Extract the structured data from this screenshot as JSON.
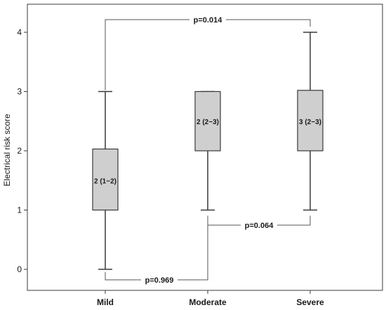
{
  "chart_data": {
    "type": "box",
    "ylabel": "Electrical risk score",
    "ylim": [
      -0.3,
      4.35
    ],
    "yticks": [
      0,
      1,
      2,
      3,
      4
    ],
    "categories": [
      "Mild",
      "Moderate",
      "Severe"
    ],
    "boxes": [
      {
        "category": "Mild",
        "min": 0,
        "q1": 1,
        "median": 1.5,
        "q3": 2.03,
        "max": 3,
        "label": "2 (1−2)"
      },
      {
        "category": "Moderate",
        "min": 1,
        "q1": 2,
        "median": 2.5,
        "q3": 3,
        "max": 3,
        "label": "2 (2−3)"
      },
      {
        "category": "Severe",
        "min": 1,
        "q1": 2,
        "median": 2.5,
        "q3": 3.02,
        "max": 4,
        "label": "3 (2−3)"
      }
    ],
    "comparisons": [
      {
        "from": "Mild",
        "to": "Severe",
        "label": "p=0.014"
      },
      {
        "from": "Moderate",
        "to": "Severe",
        "label": "p=0.064"
      },
      {
        "from": "Mild",
        "to": "Moderate",
        "label": "p=0.969"
      }
    ]
  },
  "colors": {
    "box_fill": "#cfcfcf",
    "line": "#3a3a3a"
  }
}
